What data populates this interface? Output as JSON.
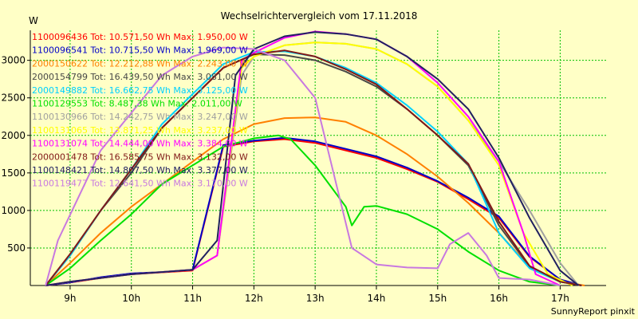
{
  "chart_data": {
    "type": "line",
    "title": "Wechselrichtervergleich vom 17.11.2018",
    "ylabel": "W",
    "footer": "SunnyReport pinxit",
    "xlim": [
      8.35,
      17.75
    ],
    "ylim": [
      0,
      3400
    ],
    "x_ticks": [
      9,
      10,
      11,
      12,
      13,
      14,
      15,
      16,
      17
    ],
    "x_tick_labels": [
      "9h",
      "10h",
      "11h",
      "12h",
      "13h",
      "14h",
      "15h",
      "16h",
      "17h"
    ],
    "y_ticks": [
      500,
      1000,
      1500,
      2000,
      2500,
      3000
    ],
    "grid": true,
    "legend_position": "top-left",
    "series": [
      {
        "name": "1100096436 Tot: 10.571,50 Wh Max: 1.950,00 W",
        "color": "#ff0000",
        "points": [
          [
            8.6,
            0
          ],
          [
            9,
            40
          ],
          [
            9.5,
            100
          ],
          [
            10,
            150
          ],
          [
            10.5,
            175
          ],
          [
            11,
            200
          ],
          [
            11.5,
            1850
          ],
          [
            12,
            1920
          ],
          [
            12.5,
            1950
          ],
          [
            13,
            1900
          ],
          [
            13.5,
            1800
          ],
          [
            14,
            1700
          ],
          [
            14.5,
            1550
          ],
          [
            15,
            1380
          ],
          [
            15.5,
            1150
          ],
          [
            16,
            900
          ],
          [
            16.5,
            380
          ],
          [
            17,
            80
          ],
          [
            17.35,
            0
          ]
        ]
      },
      {
        "name": "1100096541 Tot: 10.715,50 Wh Max: 1.969,00 W",
        "color": "#0000c8",
        "points": [
          [
            8.6,
            0
          ],
          [
            9,
            40
          ],
          [
            9.5,
            110
          ],
          [
            10,
            160
          ],
          [
            10.5,
            180
          ],
          [
            11,
            210
          ],
          [
            11.5,
            1870
          ],
          [
            12,
            1930
          ],
          [
            12.5,
            1969
          ],
          [
            13,
            1920
          ],
          [
            13.5,
            1820
          ],
          [
            14,
            1720
          ],
          [
            14.5,
            1570
          ],
          [
            15,
            1390
          ],
          [
            15.5,
            1170
          ],
          [
            16,
            920
          ],
          [
            16.5,
            390
          ],
          [
            17,
            80
          ],
          [
            17.35,
            0
          ]
        ]
      },
      {
        "name": "2000150622 Tot: 12.212,88 Wh Max: 2.243,00 W",
        "color": "#ff8000",
        "points": [
          [
            8.6,
            0
          ],
          [
            9,
            300
          ],
          [
            9.5,
            700
          ],
          [
            10,
            1050
          ],
          [
            10.5,
            1350
          ],
          [
            11,
            1650
          ],
          [
            11.5,
            1950
          ],
          [
            12,
            2150
          ],
          [
            12.5,
            2230
          ],
          [
            13,
            2240
          ],
          [
            13.5,
            2180
          ],
          [
            14,
            2000
          ],
          [
            14.5,
            1750
          ],
          [
            15,
            1450
          ],
          [
            15.5,
            1100
          ],
          [
            16,
            700
          ],
          [
            16.5,
            250
          ],
          [
            17,
            50
          ],
          [
            17.4,
            0
          ]
        ]
      },
      {
        "name": "2000154799 Tot: 16.439,50 Wh Max: 3.081,00 W",
        "color": "#484848",
        "points": [
          [
            8.6,
            0
          ],
          [
            9,
            400
          ],
          [
            9.5,
            1000
          ],
          [
            10,
            1500
          ],
          [
            10.5,
            2100
          ],
          [
            11,
            2500
          ],
          [
            11.5,
            2900
          ],
          [
            12,
            3080
          ],
          [
            12.5,
            3070
          ],
          [
            13,
            3000
          ],
          [
            13.5,
            2850
          ],
          [
            14,
            2650
          ],
          [
            14.5,
            2350
          ],
          [
            15,
            2000
          ],
          [
            15.5,
            1600
          ],
          [
            16,
            800
          ],
          [
            16.5,
            250
          ],
          [
            17,
            50
          ],
          [
            17.35,
            0
          ]
        ]
      },
      {
        "name": "2000149882 Tot: 16.662,75 Wh Max: 3.125,00 W",
        "color": "#00d0ff",
        "points": [
          [
            8.6,
            0
          ],
          [
            9,
            400
          ],
          [
            9.5,
            1000
          ],
          [
            10,
            1550
          ],
          [
            10.5,
            2150
          ],
          [
            11,
            2550
          ],
          [
            11.5,
            2950
          ],
          [
            12,
            3110
          ],
          [
            12.5,
            3120
          ],
          [
            13,
            3050
          ],
          [
            13.5,
            2900
          ],
          [
            14,
            2700
          ],
          [
            14.5,
            2400
          ],
          [
            15,
            2050
          ],
          [
            15.5,
            1620
          ],
          [
            16,
            700
          ],
          [
            16.5,
            230
          ],
          [
            17,
            50
          ],
          [
            17.35,
            0
          ]
        ]
      },
      {
        "name": "1100129553 Tot: 8.487,38 Wh Max: 2.011,00 W",
        "color": "#00e000",
        "points": [
          [
            8.6,
            0
          ],
          [
            9,
            230
          ],
          [
            9.5,
            600
          ],
          [
            10,
            950
          ],
          [
            10.5,
            1350
          ],
          [
            11,
            1600
          ],
          [
            11.5,
            1850
          ],
          [
            12,
            1960
          ],
          [
            12.4,
            2000
          ],
          [
            12.6,
            1950
          ],
          [
            13,
            1600
          ],
          [
            13.5,
            1050
          ],
          [
            13.6,
            800
          ],
          [
            13.8,
            1050
          ],
          [
            14,
            1060
          ],
          [
            14.5,
            950
          ],
          [
            15,
            750
          ],
          [
            15.5,
            450
          ],
          [
            16,
            200
          ],
          [
            16.5,
            50
          ],
          [
            17,
            0
          ]
        ]
      },
      {
        "name": "1100130966 Tot: 14.242,75 Wh Max: 3.247,00 W",
        "color": "#a0a0a0",
        "points": [
          [
            8.6,
            0
          ],
          [
            9,
            50
          ],
          [
            9.5,
            100
          ],
          [
            10,
            150
          ],
          [
            10.5,
            180
          ],
          [
            11,
            210
          ],
          [
            11.4,
            400
          ],
          [
            11.8,
            2800
          ],
          [
            12,
            3050
          ],
          [
            12.5,
            3200
          ],
          [
            13,
            3240
          ],
          [
            13.5,
            3220
          ],
          [
            14,
            3150
          ],
          [
            14.5,
            2950
          ],
          [
            15,
            2650
          ],
          [
            15.5,
            2200
          ],
          [
            16,
            1650
          ],
          [
            16.5,
            1000
          ],
          [
            17,
            300
          ],
          [
            17.3,
            0
          ]
        ]
      },
      {
        "name": "1100131065 Tot: 13.871,25 Wh Max: 3.237,00 W",
        "color": "#ffff00",
        "points": [
          [
            8.6,
            0
          ],
          [
            9,
            50
          ],
          [
            9.5,
            100
          ],
          [
            10,
            150
          ],
          [
            10.5,
            180
          ],
          [
            11,
            210
          ],
          [
            11.4,
            400
          ],
          [
            11.8,
            2900
          ],
          [
            12,
            3050
          ],
          [
            12.5,
            3200
          ],
          [
            13,
            3237
          ],
          [
            13.5,
            3220
          ],
          [
            14,
            3150
          ],
          [
            14.5,
            2950
          ],
          [
            15,
            2650
          ],
          [
            15.5,
            2200
          ],
          [
            16,
            1600
          ],
          [
            16.4,
            700
          ],
          [
            16.8,
            150
          ],
          [
            17.2,
            0
          ]
        ]
      },
      {
        "name": "1100131074 Tot: 14.444,00 Wh Max: 3.384,00 W",
        "color": "#ff00ff",
        "points": [
          [
            8.6,
            0
          ],
          [
            9,
            50
          ],
          [
            9.5,
            100
          ],
          [
            10,
            150
          ],
          [
            10.5,
            180
          ],
          [
            11,
            210
          ],
          [
            11.4,
            400
          ],
          [
            11.8,
            3000
          ],
          [
            12,
            3100
          ],
          [
            12.5,
            3300
          ],
          [
            13,
            3384
          ],
          [
            13.5,
            3350
          ],
          [
            14,
            3280
          ],
          [
            14.5,
            3050
          ],
          [
            15,
            2700
          ],
          [
            15.5,
            2250
          ],
          [
            16,
            1650
          ],
          [
            16.4,
            700
          ],
          [
            16.6,
            150
          ],
          [
            17,
            0
          ]
        ]
      },
      {
        "name": "2000001478 Tot: 16.585,75 Wh Max: 3.132,00 W",
        "color": "#801818",
        "points": [
          [
            8.6,
            0
          ],
          [
            9,
            420
          ],
          [
            9.5,
            1000
          ],
          [
            10,
            1550
          ],
          [
            10.5,
            2100
          ],
          [
            11,
            2500
          ],
          [
            11.5,
            2900
          ],
          [
            12,
            3080
          ],
          [
            12.5,
            3132
          ],
          [
            13,
            3050
          ],
          [
            13.5,
            2880
          ],
          [
            14,
            2680
          ],
          [
            14.5,
            2350
          ],
          [
            15,
            2000
          ],
          [
            15.5,
            1620
          ],
          [
            16,
            850
          ],
          [
            16.5,
            260
          ],
          [
            17,
            50
          ],
          [
            17.35,
            0
          ]
        ]
      },
      {
        "name": "1100148421 Tot: 14.807,50 Wh Max: 3.377,00 W",
        "color": "#202060",
        "points": [
          [
            8.6,
            0
          ],
          [
            9,
            50
          ],
          [
            9.5,
            100
          ],
          [
            10,
            150
          ],
          [
            10.5,
            180
          ],
          [
            11,
            210
          ],
          [
            11.4,
            600
          ],
          [
            11.7,
            2800
          ],
          [
            12,
            3150
          ],
          [
            12.5,
            3320
          ],
          [
            13,
            3377
          ],
          [
            13.5,
            3350
          ],
          [
            14,
            3280
          ],
          [
            14.5,
            3050
          ],
          [
            15,
            2750
          ],
          [
            15.5,
            2350
          ],
          [
            16,
            1700
          ],
          [
            16.5,
            900
          ],
          [
            17,
            200
          ],
          [
            17.3,
            0
          ]
        ]
      },
      {
        "name": "1100119477 Tot: 12.641,50 Wh Max: 3.170,00 W",
        "color": "#c878e0",
        "points": [
          [
            8.6,
            0
          ],
          [
            8.8,
            600
          ],
          [
            9.5,
            1800
          ],
          [
            10,
            2300
          ],
          [
            10.5,
            2800
          ],
          [
            11,
            3050
          ],
          [
            11.5,
            3170
          ],
          [
            12,
            3150
          ],
          [
            12.5,
            3000
          ],
          [
            13,
            2500
          ],
          [
            13.3,
            1500
          ],
          [
            13.6,
            500
          ],
          [
            14,
            280
          ],
          [
            14.5,
            240
          ],
          [
            15,
            230
          ],
          [
            15.2,
            550
          ],
          [
            15.5,
            700
          ],
          [
            15.8,
            400
          ],
          [
            16,
            100
          ],
          [
            16.5,
            80
          ],
          [
            17,
            0
          ]
        ]
      }
    ]
  }
}
